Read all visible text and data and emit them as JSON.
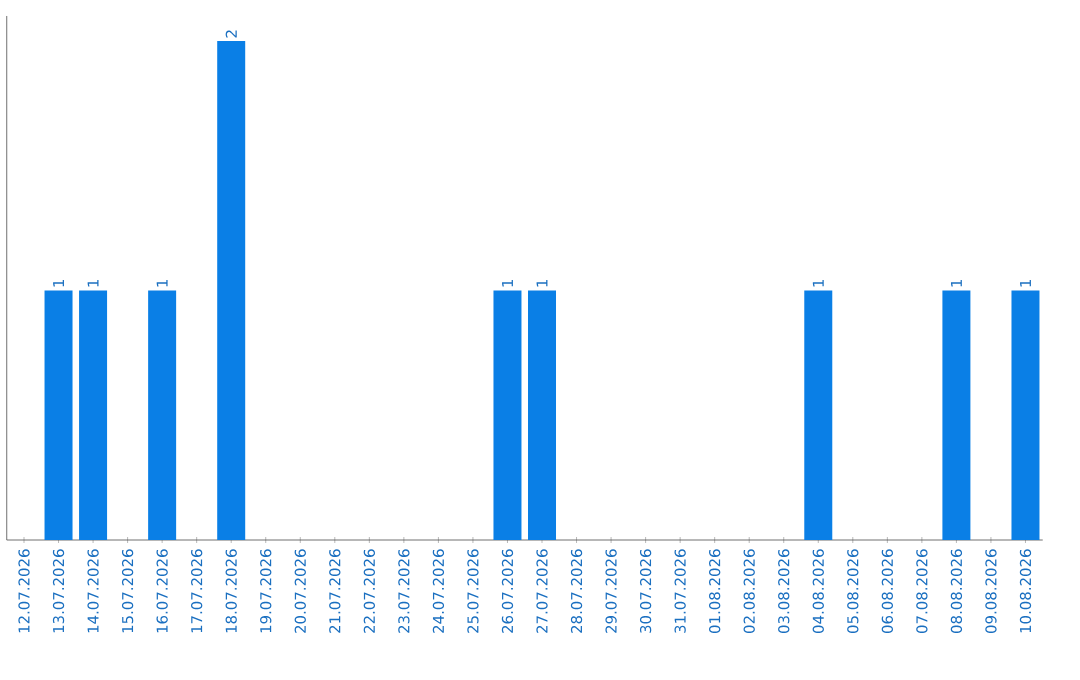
{
  "chart_data": {
    "type": "bar",
    "categories": [
      "12.07.2026",
      "13.07.2026",
      "14.07.2026",
      "15.07.2026",
      "16.07.2026",
      "17.07.2026",
      "18.07.2026",
      "19.07.2026",
      "20.07.2026",
      "21.07.2026",
      "22.07.2026",
      "23.07.2026",
      "24.07.2026",
      "25.07.2026",
      "26.07.2026",
      "27.07.2026",
      "28.07.2026",
      "29.07.2026",
      "30.07.2026",
      "31.07.2026",
      "01.08.2026",
      "02.08.2026",
      "03.08.2026",
      "04.08.2026",
      "05.08.2026",
      "06.08.2026",
      "07.08.2026",
      "08.08.2026",
      "09.08.2026",
      "10.08.2026"
    ],
    "values": [
      0,
      1,
      1,
      0,
      1,
      0,
      2,
      0,
      0,
      0,
      0,
      0,
      0,
      0,
      1,
      1,
      0,
      0,
      0,
      0,
      0,
      0,
      0,
      1,
      0,
      0,
      0,
      1,
      0,
      1
    ],
    "value_labels": [
      null,
      "1",
      "1",
      null,
      "1",
      null,
      "2",
      null,
      null,
      null,
      null,
      null,
      null,
      null,
      "1",
      "1",
      null,
      null,
      null,
      null,
      null,
      null,
      null,
      "1",
      null,
      null,
      null,
      "1",
      null,
      "1"
    ],
    "color": "#0a7fe6"
  }
}
